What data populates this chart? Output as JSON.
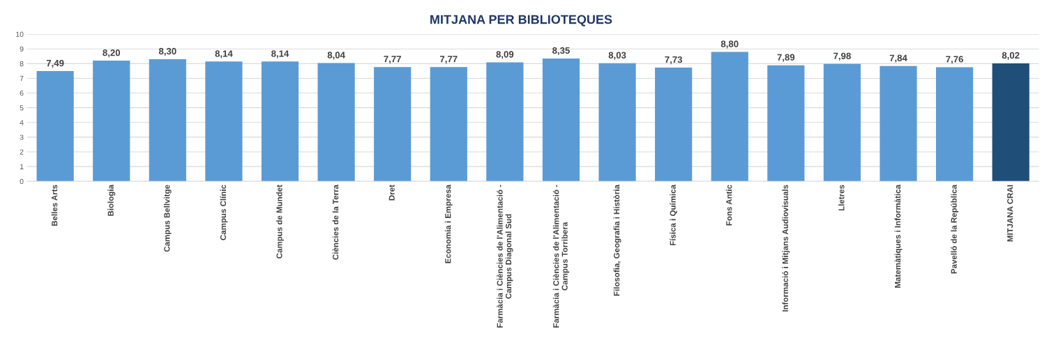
{
  "chart_data": {
    "type": "bar",
    "title": "MITJANA PER BIBLIOTEQUES",
    "categories": [
      "Belles Arts",
      "Biologia",
      "Campus Bellvitge",
      "Campus Clínic",
      "Campus de Mundet",
      "Ciències de la Terra",
      "Dret",
      "Economia i Empresa",
      "Farmàcia i Ciències de l'Alimentació -\nCampus Diagonal Sud",
      "Farmàcia i Ciències de l'Alimentació -\nCampus Torribera",
      "Filosofia, Geografia i Història",
      "Física i Química",
      "Fons Antic",
      "Informació i Mitjans Audiovisuals",
      "Lletres",
      "Matemàtiques i Informàtica",
      "Pavelló de la República",
      "MITJANA CRAI"
    ],
    "values": [
      7.49,
      8.2,
      8.3,
      8.14,
      8.14,
      8.04,
      7.77,
      7.77,
      8.09,
      8.35,
      8.03,
      7.73,
      8.8,
      7.89,
      7.98,
      7.84,
      7.76,
      8.02
    ],
    "value_labels": [
      "7,49",
      "8,20",
      "8,30",
      "8,14",
      "8,14",
      "8,04",
      "7,77",
      "7,77",
      "8,09",
      "8,35",
      "8,03",
      "7,73",
      "8,80",
      "7,89",
      "7,98",
      "7,84",
      "7,76",
      "8,02"
    ],
    "colors": [
      "#5b9bd5",
      "#5b9bd5",
      "#5b9bd5",
      "#5b9bd5",
      "#5b9bd5",
      "#5b9bd5",
      "#5b9bd5",
      "#5b9bd5",
      "#5b9bd5",
      "#5b9bd5",
      "#5b9bd5",
      "#5b9bd5",
      "#5b9bd5",
      "#5b9bd5",
      "#5b9bd5",
      "#5b9bd5",
      "#5b9bd5",
      "#1f4e79"
    ],
    "ylim": [
      0,
      10
    ],
    "yticks": [
      0,
      1,
      2,
      3,
      4,
      5,
      6,
      7,
      8,
      9,
      10
    ],
    "grid": "y",
    "legend": false
  }
}
